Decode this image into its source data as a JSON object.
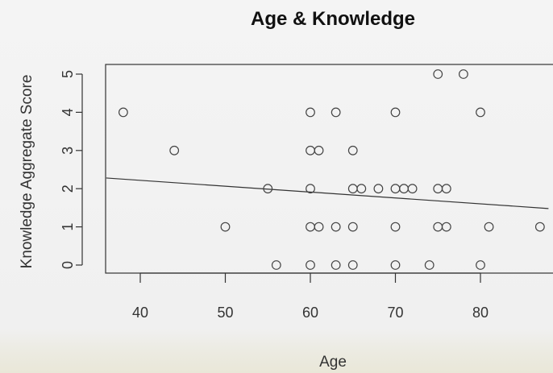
{
  "chart_data": {
    "type": "scatter",
    "title": "Age & Knowledge",
    "xlabel": "Age",
    "ylabel": "Knowledge Aggregate Score",
    "xlim": [
      36,
      88
    ],
    "ylim": [
      -0.2,
      5.2
    ],
    "xticks": [
      40,
      50,
      60,
      70,
      80
    ],
    "yticks": [
      0,
      1,
      2,
      3,
      4,
      5
    ],
    "grid": false,
    "marker": "open-circle",
    "colors": {
      "points": "#444444",
      "axes": "#333333",
      "trend": "#333333"
    },
    "series": [
      {
        "points": [
          {
            "x": 38,
            "y": 4
          },
          {
            "x": 44,
            "y": 3
          },
          {
            "x": 50,
            "y": 1
          },
          {
            "x": 55,
            "y": 2
          },
          {
            "x": 56,
            "y": 0
          },
          {
            "x": 60,
            "y": 4
          },
          {
            "x": 60,
            "y": 3
          },
          {
            "x": 60,
            "y": 2
          },
          {
            "x": 60,
            "y": 1
          },
          {
            "x": 60,
            "y": 0
          },
          {
            "x": 61,
            "y": 3
          },
          {
            "x": 61,
            "y": 1
          },
          {
            "x": 63,
            "y": 4
          },
          {
            "x": 63,
            "y": 1
          },
          {
            "x": 63,
            "y": 0
          },
          {
            "x": 65,
            "y": 3
          },
          {
            "x": 65,
            "y": 2
          },
          {
            "x": 65,
            "y": 1
          },
          {
            "x": 65,
            "y": 0
          },
          {
            "x": 66,
            "y": 2
          },
          {
            "x": 68,
            "y": 2
          },
          {
            "x": 70,
            "y": 4
          },
          {
            "x": 70,
            "y": 2
          },
          {
            "x": 70,
            "y": 1
          },
          {
            "x": 70,
            "y": 0
          },
          {
            "x": 71,
            "y": 2
          },
          {
            "x": 72,
            "y": 2
          },
          {
            "x": 74,
            "y": 0
          },
          {
            "x": 75,
            "y": 5
          },
          {
            "x": 75,
            "y": 2
          },
          {
            "x": 75,
            "y": 1
          },
          {
            "x": 76,
            "y": 2
          },
          {
            "x": 76,
            "y": 1
          },
          {
            "x": 78,
            "y": 5
          },
          {
            "x": 80,
            "y": 4
          },
          {
            "x": 80,
            "y": 0
          },
          {
            "x": 81,
            "y": 1
          },
          {
            "x": 87,
            "y": 1
          }
        ]
      }
    ],
    "trend_line": {
      "x": [
        36,
        88
      ],
      "y": [
        2.28,
        1.48
      ]
    }
  }
}
